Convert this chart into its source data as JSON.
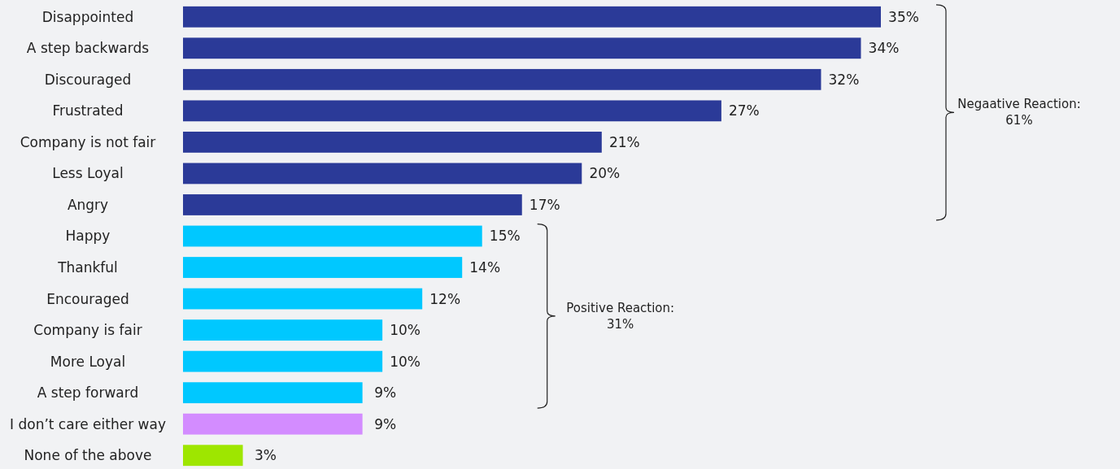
{
  "chart_data": {
    "type": "bar",
    "orientation": "horizontal",
    "categories": [
      "Disappointed",
      "A step backwards",
      "Discouraged",
      "Frustrated",
      "Company is not fair",
      "Less Loyal",
      "Angry",
      "Happy",
      "Thankful",
      "Encouraged",
      "Company is fair",
      "More Loyal",
      "A step forward",
      "I don’t care either way",
      "None of the above"
    ],
    "values": [
      35,
      34,
      32,
      27,
      21,
      20,
      17,
      15,
      14,
      12,
      10,
      10,
      9,
      9,
      3
    ],
    "colors": [
      "#2b3a98",
      "#2b3a98",
      "#2b3a98",
      "#2b3a98",
      "#2b3a98",
      "#2b3a98",
      "#2b3a98",
      "#00c8ff",
      "#00c8ff",
      "#00c8ff",
      "#00c8ff",
      "#00c8ff",
      "#00c8ff",
      "#d38cff",
      "#9ee600"
    ],
    "value_labels": [
      "35%",
      "34%",
      "32%",
      "27%",
      "21%",
      "20%",
      "17%",
      "15%",
      "14%",
      "12%",
      "10%",
      "10%",
      "9%",
      "9%",
      "3%"
    ],
    "annotations": [
      "Negaative Reaction:\n61%",
      "Positive Reaction:\n31%"
    ]
  }
}
